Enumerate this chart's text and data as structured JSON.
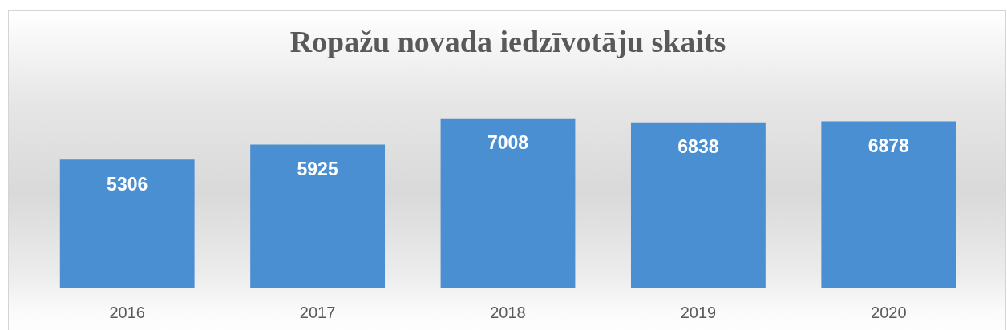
{
  "chart_data": {
    "type": "bar",
    "title": "Ropažu novada iedzīvotāju skaits",
    "categories": [
      "2016",
      "2017",
      "2018",
      "2019",
      "2020"
    ],
    "values": [
      5306,
      5925,
      7008,
      6838,
      6878
    ],
    "color": "#4a8fd2",
    "tick_labels": "x",
    "data_labels": true
  }
}
